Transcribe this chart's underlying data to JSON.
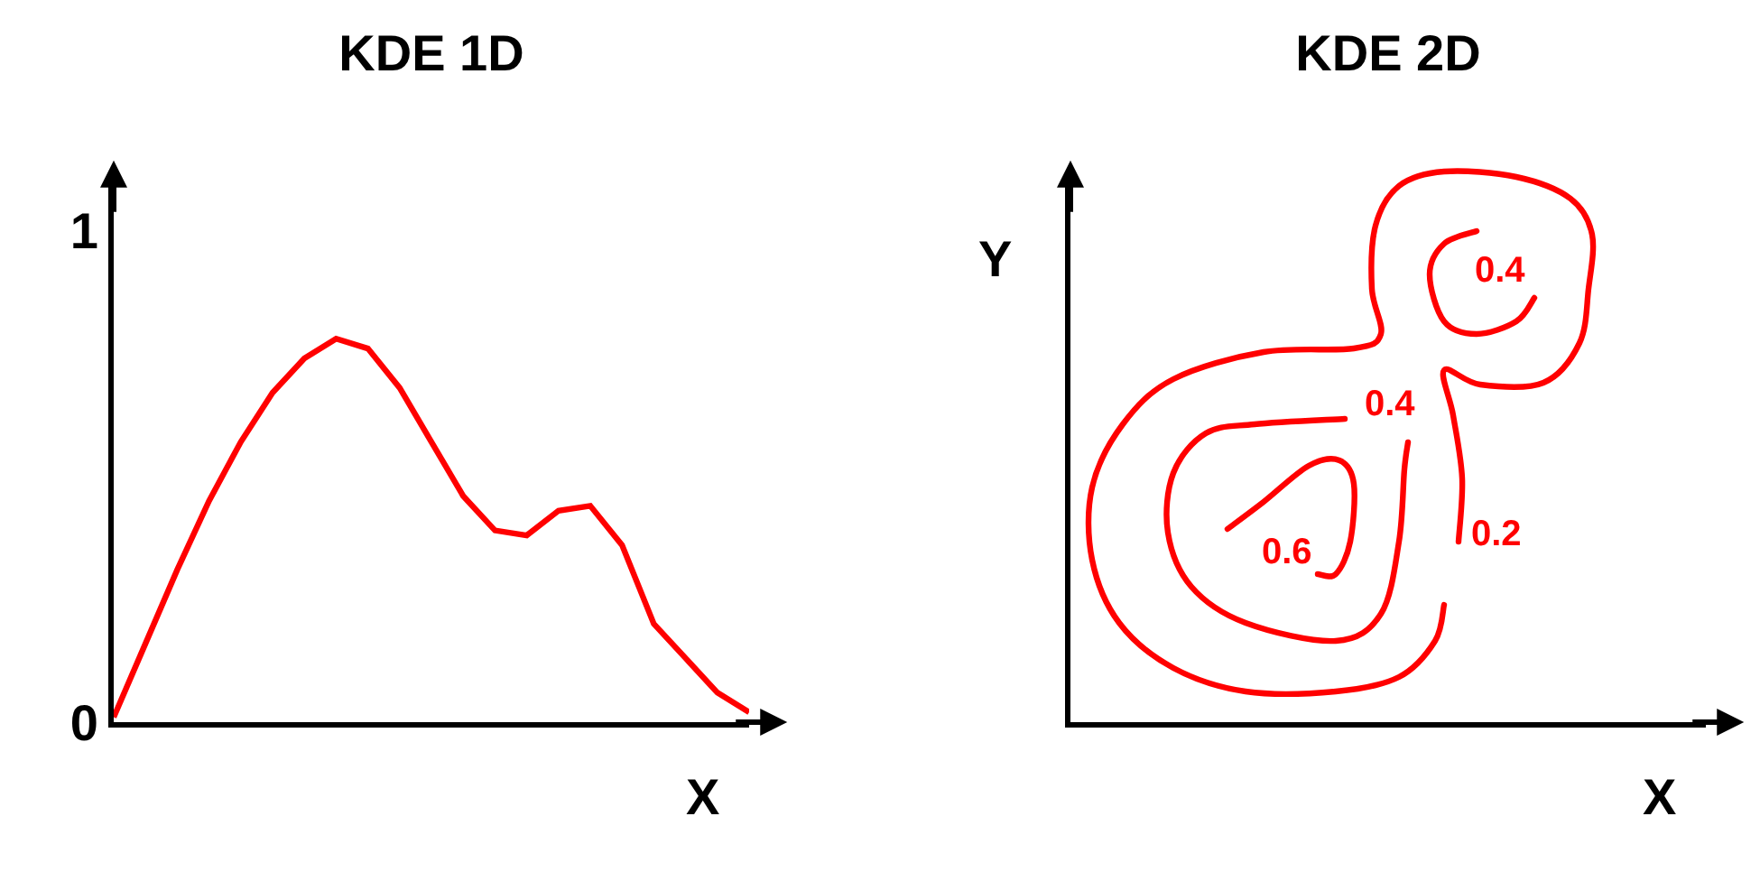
{
  "chart_data": [
    {
      "type": "line",
      "title": "KDE 1D",
      "xlabel": "X",
      "categories": [
        null,
        null,
        null,
        null,
        null,
        null,
        null,
        null,
        null,
        null,
        null,
        null,
        null,
        null,
        null,
        null,
        null,
        null,
        null,
        null,
        null
      ],
      "ylim": [
        0,
        1.12
      ],
      "yticks": [
        0,
        1
      ],
      "tick_labels": "y",
      "grid": false,
      "marker": "none",
      "line_style": "solid",
      "series": [
        {
          "color": "#ff0000",
          "values": [
            0.01,
            0.16,
            0.31,
            0.45,
            0.57,
            0.67,
            0.74,
            0.78,
            0.76,
            0.68,
            0.57,
            0.46,
            0.39,
            0.38,
            0.43,
            0.44,
            0.36,
            0.2,
            0.13,
            0.06,
            0.02
          ]
        }
      ]
    },
    {
      "type": "other",
      "title": "KDE 2D",
      "xlabel": "X",
      "ylabel": "Y",
      "annotations": [
        "0.4",
        "0.4",
        "0.6",
        "0.2"
      ]
    }
  ]
}
